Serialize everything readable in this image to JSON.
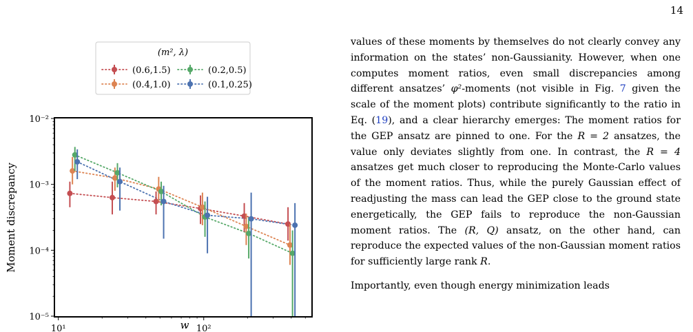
{
  "page": {
    "number": "14"
  },
  "figure": {
    "legend": {
      "title": "(m², λ)",
      "entries": [
        {
          "label": "(0.6,1.5)",
          "color": "#c44e52"
        },
        {
          "label": "(0.2,0.5)",
          "color": "#55a868"
        },
        {
          "label": "(0.4,1.0)",
          "color": "#dd8452"
        },
        {
          "label": "(0.1,0.25)",
          "color": "#4c72b0"
        }
      ]
    }
  },
  "chart_data": {
    "type": "scatter",
    "title": "",
    "xlabel": "w",
    "ylabel": "Moment discrepancy",
    "xscale": "log",
    "yscale": "log",
    "xlim": [
      9.5,
      550
    ],
    "ylim": [
      1e-05,
      0.01
    ],
    "grid": false,
    "legend_position": "top-outside",
    "x_tick_labels": [
      "10¹",
      "10²"
    ],
    "y_tick_labels": [
      "10⁻⁵",
      "10⁻⁴",
      "10⁻³",
      "10⁻²"
    ],
    "series": [
      {
        "name": "(0.6,1.5)",
        "color": "#c44e52",
        "points": [
          {
            "x": 12,
            "y": 0.00073,
            "ylo": 0.00045,
            "yhi": 0.0011
          },
          {
            "x": 23.5,
            "y": 0.00063,
            "ylo": 0.00035,
            "yhi": 0.0011
          },
          {
            "x": 47,
            "y": 0.00055,
            "ylo": 0.00035,
            "yhi": 0.00078
          },
          {
            "x": 95,
            "y": 0.00043,
            "ylo": 0.00025,
            "yhi": 0.00068
          },
          {
            "x": 190,
            "y": 0.00033,
            "ylo": 0.00019,
            "yhi": 0.00052
          },
          {
            "x": 380,
            "y": 0.00025,
            "ylo": 0.00014,
            "yhi": 0.00045
          }
        ]
      },
      {
        "name": "(0.4,1.0)",
        "color": "#dd8452",
        "points": [
          {
            "x": 12.5,
            "y": 0.0016,
            "ylo": 0.001,
            "yhi": 0.0026
          },
          {
            "x": 24.5,
            "y": 0.00125,
            "ylo": 0.0008,
            "yhi": 0.0018
          },
          {
            "x": 49,
            "y": 0.00085,
            "ylo": 0.00055,
            "yhi": 0.0013
          },
          {
            "x": 98,
            "y": 0.00045,
            "ylo": 0.00024,
            "yhi": 0.00075
          },
          {
            "x": 196,
            "y": 0.00023,
            "ylo": 0.00012,
            "yhi": 0.00036
          },
          {
            "x": 392,
            "y": 0.00012,
            "ylo": 6e-05,
            "yhi": 0.00025
          }
        ]
      },
      {
        "name": "(0.2,0.5)",
        "color": "#55a868",
        "points": [
          {
            "x": 13,
            "y": 0.0028,
            "ylo": 0.0016,
            "yhi": 0.0037
          },
          {
            "x": 25.5,
            "y": 0.0015,
            "ylo": 0.0009,
            "yhi": 0.0021
          },
          {
            "x": 51,
            "y": 0.00078,
            "ylo": 0.00048,
            "yhi": 0.0011
          },
          {
            "x": 102,
            "y": 0.00032,
            "ylo": 0.00016,
            "yhi": 0.00055
          },
          {
            "x": 204,
            "y": 0.00018,
            "ylo": 7.5e-05,
            "yhi": 0.00032
          },
          {
            "x": 408,
            "y": 9e-05,
            "ylo": 1e-05,
            "yhi": 0.0002
          }
        ]
      },
      {
        "name": "(0.1,0.25)",
        "color": "#4c72b0",
        "points": [
          {
            "x": 13.5,
            "y": 0.0022,
            "ylo": 0.0012,
            "yhi": 0.0034
          },
          {
            "x": 26.5,
            "y": 0.0011,
            "ylo": 0.0004,
            "yhi": 0.0018
          },
          {
            "x": 53,
            "y": 0.00055,
            "ylo": 0.00015,
            "yhi": 0.00095
          },
          {
            "x": 106,
            "y": 0.00034,
            "ylo": 9e-05,
            "yhi": 0.00065
          },
          {
            "x": 212,
            "y": 0.0003,
            "ylo": 1e-05,
            "yhi": 0.00075
          },
          {
            "x": 424,
            "y": 0.00024,
            "ylo": 1e-05,
            "yhi": 0.00052
          }
        ]
      }
    ]
  },
  "text": {
    "p1_a": "values of these moments by themselves do not clearly convey any information on the states’ non-Gaussianity. However, when one computes moment ratios, even small discrepancies among different ansatzes’ ",
    "p1_phi": "φ²",
    "p1_b": "-moments (not visible in Fig. ",
    "p1_ref_fig": "7",
    "p1_c": " given the scale of the moment plots) contribute significantly to the ratio in Eq. (",
    "p1_ref_eq": "19",
    "p1_d": "), and a clear hierarchy emerges: The moment ratios for the GEP ansatz are pinned to one. For the ",
    "p1_r2": "R = 2",
    "p1_e": " ansatzes, the value only deviates slightly from one. In contrast, the ",
    "p1_r4": "R = 4",
    "p1_f": " ansatzes get much closer to reproducing the Monte-Carlo values of the moment ratios. Thus, while the purely Gaussian effect of readjusting the mass can lead the GEP close to the ground state energetically, the GEP fails to reproduce the non-Gaussian moment ratios. The ",
    "p1_rq": "(R, Q)",
    "p1_g": " ansatz, on the other hand, can reproduce the expected values of the non-Gaussian moment ratios for sufficiently large rank ",
    "p1_r": "R",
    "p1_h": ".",
    "p2": "Importantly, even though energy minimization leads"
  }
}
